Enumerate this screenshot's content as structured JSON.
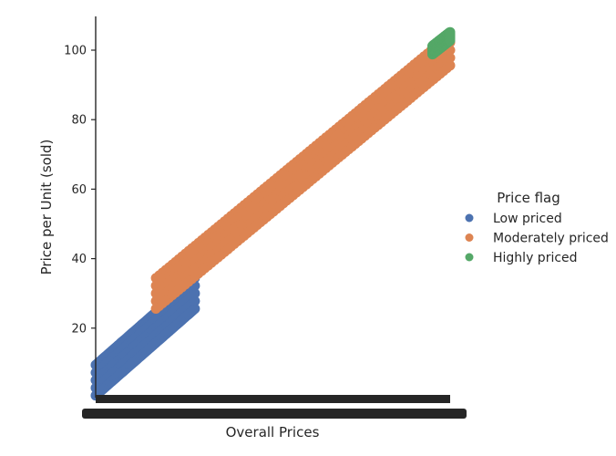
{
  "chart_data": {
    "type": "scatter",
    "title": "",
    "xlabel": "Overall Prices",
    "ylabel": "Price per Unit (sold)",
    "ylim": [
      0,
      110
    ],
    "yticks": [
      20,
      40,
      60,
      80,
      100
    ],
    "x_tick_labels": "dense and overlapping (illegible)",
    "grid": false,
    "legend": {
      "title": "Price flag",
      "placement": "right"
    },
    "series": [
      {
        "name": "Low priced",
        "color": "#4c72b0",
        "y_range": [
          5,
          30
        ],
        "band_halfwidth": 5.5,
        "x_fraction_range": [
          0.0,
          0.28
        ]
      },
      {
        "name": "Moderately priced",
        "color": "#dd8452",
        "y_range": [
          30,
          100
        ],
        "band_halfwidth": 5.5,
        "x_fraction_range": [
          0.17,
          1.0
        ]
      },
      {
        "name": "Highly priced",
        "color": "#55a868",
        "y_range": [
          100,
          104
        ],
        "band_halfwidth": 1.5,
        "x_fraction_range": [
          0.95,
          1.0
        ]
      }
    ]
  }
}
